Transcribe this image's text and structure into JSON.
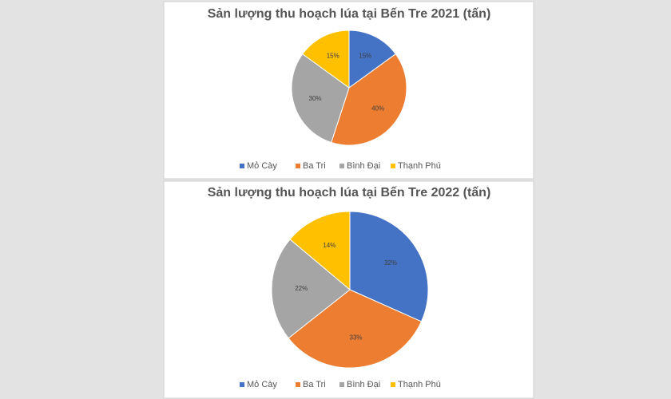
{
  "chart_data": [
    {
      "type": "pie",
      "title": "Sản lượng thu hoạch lúa tại Bến Tre 2021 (tấn)",
      "categories": [
        "Mỏ Cày",
        "Ba Tri",
        "Bình Đại",
        "Thạnh Phú"
      ],
      "values": [
        15,
        40,
        30,
        15
      ],
      "value_labels": [
        "15%",
        "40%",
        "30%",
        "15%"
      ],
      "colors": [
        "#4472c4",
        "#ed7d31",
        "#a5a5a5",
        "#ffc000"
      ],
      "legend": "bottom"
    },
    {
      "type": "pie",
      "title": "Sản lượng thu hoạch lúa tại Bến Tre 2022 (tấn)",
      "categories": [
        "Mỏ Cày",
        "Ba Tri",
        "Bình Đại",
        "Thạnh Phú"
      ],
      "values": [
        32,
        33,
        22,
        14
      ],
      "value_labels": [
        "32%",
        "33%",
        "22%",
        "14%"
      ],
      "colors": [
        "#4472c4",
        "#ed7d31",
        "#a5a5a5",
        "#ffc000"
      ],
      "legend": "bottom"
    }
  ]
}
